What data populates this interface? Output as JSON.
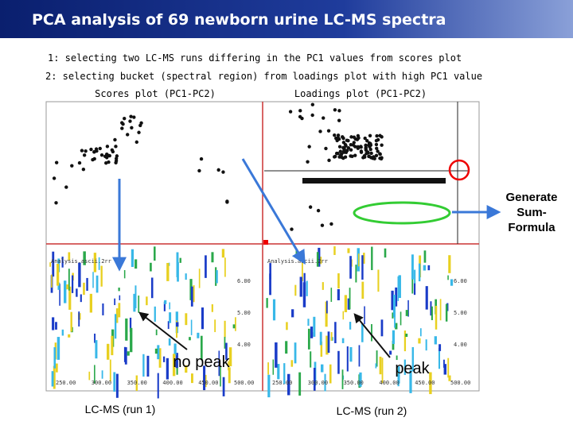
{
  "header": {
    "title": "PCA analysis of 69 newborn urine LC-MS spectra"
  },
  "notes": [
    "1: selecting two LC-MS runs differing in the PC1 values from scores plot",
    "2: selecting bucket (spectral region) from loadings plot with high PC1 value"
  ],
  "panels": {
    "scores": "Scores plot (PC1-PC2)",
    "loadings": "Loadings plot (PC1-PC2)"
  },
  "lcms": [
    {
      "file": "Analysis.ascii.2rr",
      "yticks": [
        "6.00",
        "5.00",
        "4.00"
      ],
      "xticks": [
        "250.00",
        "300.00",
        "350.00",
        "400.00",
        "450.00",
        "500.00"
      ],
      "callout": "no peak",
      "caption": "LC-MS (run 1)"
    },
    {
      "file": "Analysis.ascii.2rr",
      "yticks": [
        "6.00",
        "5.00",
        "4.00"
      ],
      "xticks": [
        "250.00",
        "300.00",
        "350.00",
        "400.00",
        "450.00",
        "500.00"
      ],
      "callout": "peak",
      "caption": "LC-MS (run 2)"
    }
  ],
  "action": "Generate Sum-Formula"
}
